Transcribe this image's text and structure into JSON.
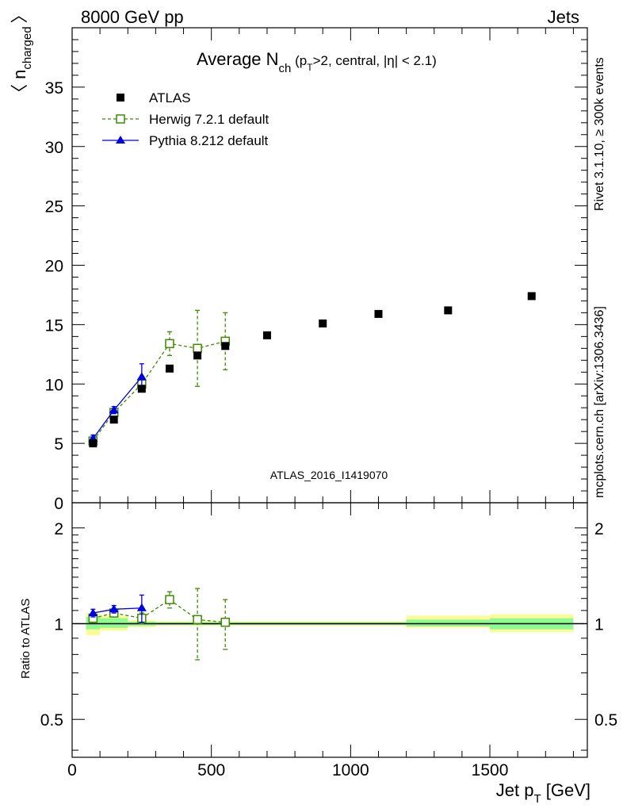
{
  "header": {
    "left": "8000 GeV pp",
    "right": "Jets"
  },
  "side": {
    "rivet": "Rivet 3.1.10, ≥ 300k events",
    "mcplots": "mcplots.cern.ch [arXiv:1306.3436]"
  },
  "analysis_tag": "ATLAS_2016_I1419070",
  "title": {
    "main": "Average N",
    "sub": "ch",
    "rest1": " (p",
    "sub2": "T",
    "rest2": ">2, central, |η| < 2.1)"
  },
  "axes": {
    "ylabel_main": "〈 n",
    "ylabel_sub": "charged",
    "ylabel_close": "〉",
    "ylabel_ratio": "Ratio to ATLAS",
    "xlabel_main": "Jet p",
    "xlabel_sub": "T",
    "xlabel_unit": " [GeV]"
  },
  "legend": [
    {
      "label": "ATLAS"
    },
    {
      "label": "Herwig 7.2.1 default"
    },
    {
      "label": "Pythia 8.212 default"
    }
  ],
  "colors": {
    "atlas": "#000000",
    "herwig": "#3d8b00",
    "pythia": "#0000e0",
    "band_inner": "#8dfb91",
    "band_outer": "#fbfb98"
  },
  "chart_data": [
    {
      "type": "scatter",
      "panel": "main",
      "xlim": [
        0,
        1850
      ],
      "ylim": [
        0,
        40
      ],
      "xticks": [
        0,
        500,
        1000,
        1500
      ],
      "yticks": [
        0,
        5,
        10,
        15,
        20,
        25,
        30,
        35
      ],
      "xtick_labels": [
        "0",
        "500",
        "1000",
        "1500"
      ],
      "ytick_labels": [
        "0",
        "5",
        "10",
        "15",
        "20",
        "25",
        "30",
        "35"
      ],
      "series": [
        {
          "name": "ATLAS",
          "x": [
            75,
            150,
            250,
            350,
            450,
            550,
            700,
            900,
            1100,
            1350,
            1650
          ],
          "y": [
            5.0,
            7.0,
            9.6,
            11.3,
            12.4,
            13.2,
            14.1,
            15.1,
            15.9,
            16.2,
            17.4
          ]
        },
        {
          "name": "Herwig 7.2.1 default",
          "x": [
            75,
            150,
            250,
            350,
            450,
            550
          ],
          "y": [
            5.2,
            7.6,
            10.0,
            13.4,
            13.0,
            13.6
          ],
          "err": [
            0.3,
            0.3,
            0.4,
            1.0,
            3.2,
            2.4
          ]
        },
        {
          "name": "Pythia 8.212 default",
          "x": [
            75,
            150,
            250
          ],
          "y": [
            5.4,
            7.8,
            10.6
          ],
          "err": [
            0.3,
            0.3,
            1.1
          ]
        }
      ]
    },
    {
      "type": "line",
      "panel": "ratio",
      "xlim": [
        0,
        1850
      ],
      "ylim": [
        0.38,
        2.4
      ],
      "log_y": true,
      "yticks": [
        0.5,
        1,
        2
      ],
      "ytick_labels": [
        "0.5",
        "1",
        "2"
      ],
      "bands": [
        {
          "x0": 50,
          "x1": 100,
          "inner": [
            0.96,
            1.05
          ],
          "outer": [
            0.92,
            1.08
          ]
        },
        {
          "x0": 100,
          "x1": 200,
          "inner": [
            0.97,
            1.04
          ],
          "outer": [
            0.95,
            1.06
          ]
        },
        {
          "x0": 200,
          "x1": 300,
          "inner": [
            0.985,
            1.015
          ],
          "outer": [
            0.975,
            1.025
          ]
        },
        {
          "x0": 300,
          "x1": 1200,
          "inner": [
            0.99,
            1.01
          ],
          "outer": [
            0.985,
            1.018
          ]
        },
        {
          "x0": 1200,
          "x1": 1500,
          "inner": [
            0.98,
            1.03
          ],
          "outer": [
            0.97,
            1.06
          ]
        },
        {
          "x0": 1500,
          "x1": 1800,
          "inner": [
            0.96,
            1.04
          ],
          "outer": [
            0.94,
            1.07
          ]
        }
      ],
      "series": [
        {
          "name": "Herwig 7.2.1 default",
          "x": [
            75,
            150,
            250,
            350,
            450,
            550
          ],
          "y": [
            1.04,
            1.08,
            1.04,
            1.19,
            1.03,
            1.01
          ],
          "err": [
            0.03,
            0.03,
            0.04,
            0.07,
            0.26,
            0.18
          ]
        },
        {
          "name": "Pythia 8.212 default",
          "x": [
            75,
            150,
            250
          ],
          "y": [
            1.08,
            1.11,
            1.12
          ],
          "err": [
            0.03,
            0.03,
            0.11
          ]
        }
      ]
    }
  ]
}
